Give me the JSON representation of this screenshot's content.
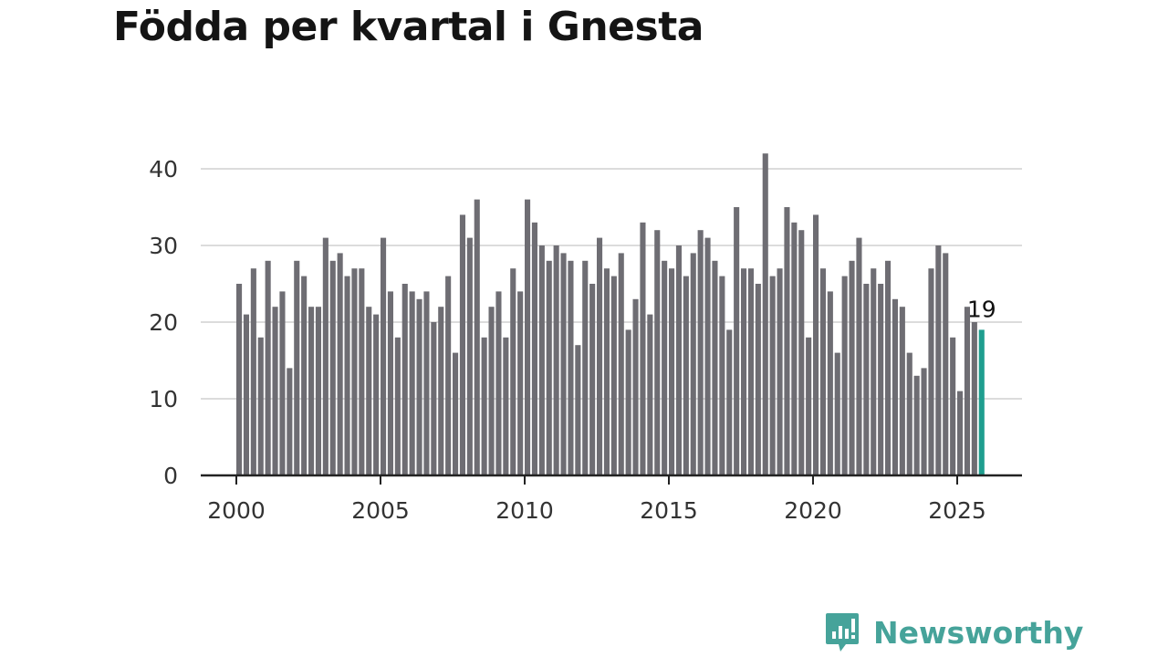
{
  "title": "Födda per kvartal i Gnesta",
  "brand": {
    "name": "Newsworthy",
    "color": "#46A39A",
    "icon": "newsworthy-logo-icon"
  },
  "chart_data": {
    "type": "bar",
    "title": "Födda per kvartal i Gnesta",
    "xlabel": "",
    "ylabel": "",
    "ylim": [
      0,
      42
    ],
    "yticks": [
      0,
      10,
      20,
      30,
      40
    ],
    "xticks": [
      2000,
      2005,
      2010,
      2015,
      2020,
      2025
    ],
    "grid": true,
    "bar_color": "#6e6d73",
    "highlight_color": "#1f9e8f",
    "start_year": 2000,
    "periods_per_year": 4,
    "values": [
      25,
      21,
      27,
      18,
      28,
      22,
      24,
      14,
      28,
      26,
      22,
      22,
      31,
      28,
      29,
      26,
      27,
      27,
      22,
      21,
      31,
      24,
      18,
      25,
      24,
      23,
      24,
      20,
      22,
      26,
      16,
      34,
      31,
      36,
      18,
      22,
      24,
      18,
      27,
      24,
      36,
      33,
      30,
      28,
      30,
      29,
      28,
      17,
      28,
      25,
      31,
      27,
      26,
      29,
      19,
      23,
      33,
      21,
      32,
      28,
      27,
      30,
      26,
      29,
      32,
      31,
      28,
      26,
      19,
      35,
      27,
      27,
      25,
      42,
      26,
      27,
      35,
      33,
      32,
      18,
      34,
      27,
      24,
      16,
      26,
      28,
      31,
      25,
      27,
      25,
      28,
      23,
      22,
      16,
      13,
      14,
      27,
      30,
      29,
      18,
      11,
      22,
      20,
      19
    ],
    "annotation": {
      "label": "19",
      "index": 103
    }
  }
}
